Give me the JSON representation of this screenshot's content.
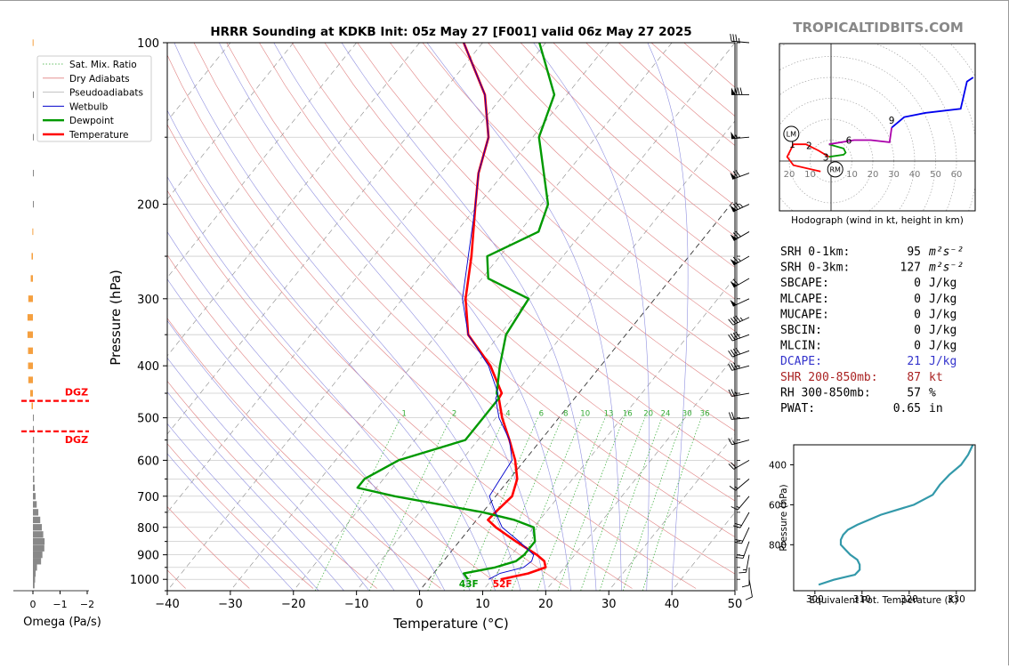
{
  "title": "HRRR Sounding at KDKB Init: 05z May 27 [F001] valid 06z May 27 2025",
  "brand": "TROPICALTIDBITS.COM",
  "colors": {
    "temperature": "#ff0000",
    "dewpoint": "#009900",
    "wetbulb": "#0000cc",
    "dry": "#e08080",
    "moist": "#9090e0",
    "mix": "#33aa33",
    "omega_pos": "#f5a040",
    "omega_neg": "#888888",
    "theta": "#3399aa",
    "dgz": "#ff0000"
  },
  "chart_data": [
    {
      "type": "skew-t",
      "title": "HRRR Sounding at KDKB Init: 05z May 27 [F001] valid 06z May 27 2025",
      "xlabel": "Temperature (°C)",
      "ylabel": "Pressure (hPa)",
      "xlim": [
        -40,
        50
      ],
      "ylim": [
        1050,
        100
      ],
      "x_ticks": [
        -40,
        -30,
        -20,
        -10,
        0,
        10,
        20,
        30,
        40,
        50
      ],
      "y_ticks": [
        100,
        200,
        300,
        400,
        500,
        600,
        700,
        800,
        900,
        1000
      ],
      "legend": [
        "Sat. Mix. Ratio",
        "Dry Adiabats",
        "Pseudoadiabats",
        "Wetbulb",
        "Dewpoint",
        "Temperature"
      ],
      "legend_position": "top-left",
      "mixing_ratio_labels": [
        "1",
        "2",
        "4",
        "6",
        "8",
        "10",
        "13",
        "16",
        "20",
        "24",
        "30",
        "36"
      ],
      "surface_labels": {
        "dewpoint": "43F",
        "temperature": "52F"
      },
      "series": [
        {
          "name": "Temperature",
          "p": [
            1000,
            975,
            950,
            925,
            900,
            850,
            800,
            775,
            750,
            700,
            650,
            600,
            550,
            500,
            460,
            450,
            400,
            350,
            300,
            250,
            200,
            175,
            150,
            125,
            100
          ],
          "t": [
            11.4,
            15,
            17,
            16,
            14,
            9,
            4,
            1.8,
            2,
            2.6,
            1.2,
            -1.5,
            -5,
            -9,
            -12,
            -12.2,
            -17.5,
            -25,
            -30,
            -34.5,
            -40.5,
            -44,
            -47,
            -53,
            -63
          ]
        },
        {
          "name": "Dewpoint",
          "p": [
            1000,
            975,
            950,
            925,
            900,
            850,
            800,
            775,
            750,
            700,
            675,
            650,
            600,
            550,
            500,
            460,
            450,
            400,
            350,
            300,
            275,
            250,
            225,
            200,
            150,
            125,
            100
          ],
          "t": [
            6.2,
            4.8,
            9,
            11.5,
            12,
            12,
            10,
            6,
            0,
            -16,
            -23,
            -23,
            -20,
            -12,
            -12,
            -12,
            -13,
            -16,
            -19,
            -20,
            -29,
            -32,
            -27,
            -29,
            -39,
            -42,
            -51
          ]
        },
        {
          "name": "Wetbulb",
          "p": [
            1000,
            975,
            950,
            925,
            900,
            850,
            800,
            750,
            700,
            650,
            600,
            550,
            500,
            460,
            450,
            400,
            350,
            300,
            250,
            200,
            175,
            150,
            125,
            100
          ],
          "t": [
            9.5,
            10.5,
            13.5,
            14,
            13.5,
            9.5,
            5,
            2,
            -1,
            -1.5,
            -2,
            -5,
            -9.5,
            -12.5,
            -12.8,
            -17.8,
            -25,
            -30.5,
            -35,
            -40.5,
            -44,
            -47,
            -53,
            -63
          ]
        }
      ]
    },
    {
      "type": "bar",
      "xlabel": "Omega (Pa/s)",
      "x_ticks": [
        0,
        -1,
        -2
      ],
      "xlim": [
        0.1,
        -2
      ],
      "annotation": "DGZ",
      "dgz_pressure": [
        530,
        465
      ],
      "bars": [
        {
          "p": 1025,
          "v": -0.06
        },
        {
          "p": 1000,
          "v": -0.08
        },
        {
          "p": 975,
          "v": -0.1
        },
        {
          "p": 950,
          "v": -0.15
        },
        {
          "p": 925,
          "v": -0.3
        },
        {
          "p": 900,
          "v": -0.35
        },
        {
          "p": 875,
          "v": -0.42
        },
        {
          "p": 850,
          "v": -0.43
        },
        {
          "p": 825,
          "v": -0.38
        },
        {
          "p": 800,
          "v": -0.33
        },
        {
          "p": 775,
          "v": -0.27
        },
        {
          "p": 750,
          "v": -0.2
        },
        {
          "p": 725,
          "v": -0.14
        },
        {
          "p": 700,
          "v": -0.1
        },
        {
          "p": 675,
          "v": -0.07
        },
        {
          "p": 650,
          "v": -0.05
        },
        {
          "p": 625,
          "v": -0.04
        },
        {
          "p": 600,
          "v": -0.04
        },
        {
          "p": 575,
          "v": -0.04
        },
        {
          "p": 550,
          "v": -0.04
        },
        {
          "p": 525,
          "v": -0.03
        },
        {
          "p": 500,
          "v": -0.02
        },
        {
          "p": 475,
          "v": 0.05
        },
        {
          "p": 450,
          "v": 0.1
        },
        {
          "p": 425,
          "v": 0.17
        },
        {
          "p": 400,
          "v": 0.18
        },
        {
          "p": 375,
          "v": 0.18
        },
        {
          "p": 350,
          "v": 0.2
        },
        {
          "p": 325,
          "v": 0.2
        },
        {
          "p": 300,
          "v": 0.17
        },
        {
          "p": 275,
          "v": 0.08
        },
        {
          "p": 250,
          "v": 0.05
        },
        {
          "p": 225,
          "v": 0.02
        },
        {
          "p": 200,
          "v": -0.01
        },
        {
          "p": 175,
          "v": -0.02
        },
        {
          "p": 150,
          "v": -0.03
        },
        {
          "p": 125,
          "v": -0.02
        },
        {
          "p": 100,
          "v": 0.01
        }
      ]
    },
    {
      "type": "line",
      "title": "Hodograph (wind in kt, height in km)",
      "x_tick_labels": [
        "20",
        "10",
        "10",
        "20",
        "30",
        "40",
        "50",
        "60"
      ],
      "height_labels": [
        "1",
        "2",
        "3",
        "6",
        "9"
      ],
      "motion_labels": [
        "LM",
        "RM"
      ],
      "segments": [
        {
          "name": "0-3km",
          "color": "#ff0000",
          "u": [
            -5,
            -18,
            -21,
            -18,
            -12,
            -6,
            -1
          ],
          "v": [
            -5,
            -2,
            2,
            8,
            8,
            5,
            2
          ]
        },
        {
          "name": "3-6km",
          "color": "#009900",
          "u": [
            -1,
            6,
            7,
            6,
            -1
          ],
          "v": [
            2,
            3,
            4,
            6,
            8
          ]
        },
        {
          "name": "6-9km",
          "color": "#aa00aa",
          "u": [
            -1,
            11,
            19,
            28,
            29
          ],
          "v": [
            8,
            10,
            10,
            9,
            16
          ]
        },
        {
          "name": "9-12km",
          "color": "#0000ee",
          "u": [
            29,
            35,
            45,
            62,
            65,
            68
          ],
          "v": [
            16,
            21,
            23,
            25,
            38,
            40
          ]
        }
      ],
      "lm": [
        -19,
        13
      ],
      "rm": [
        2,
        -4
      ]
    },
    {
      "type": "line",
      "xlabel": "Equivalent Pot. Temperature (K)",
      "ylabel": "Pressure (hPa)",
      "x_ticks": [
        300,
        310,
        320,
        330
      ],
      "y_ticks": [
        400,
        600,
        800
      ],
      "xlim": [
        295.5,
        334
      ],
      "ylim": [
        1030,
        300
      ],
      "series": [
        {
          "p": [
            1000,
            975,
            950,
            925,
            900,
            875,
            850,
            825,
            800,
            775,
            750,
            725,
            700,
            650,
            600,
            550,
            500,
            450,
            400,
            350,
            300
          ],
          "theta_e": [
            300.8,
            304,
            308.5,
            309.5,
            309.5,
            309,
            307.5,
            306.5,
            305.5,
            305.5,
            306,
            307,
            309,
            314,
            321,
            325,
            326.5,
            328.5,
            331,
            332.5,
            333.5
          ]
        }
      ]
    }
  ],
  "stats": [
    {
      "name": "SRH 0-1km:",
      "value": "95",
      "unit": "m²s⁻²",
      "color": "#000000"
    },
    {
      "name": "SRH 0-3km:",
      "value": "127",
      "unit": "m²s⁻²",
      "color": "#000000"
    },
    {
      "name": "SBCAPE:",
      "value": "0",
      "unit": "J/kg",
      "color": "#000000"
    },
    {
      "name": "MLCAPE:",
      "value": "0",
      "unit": "J/kg",
      "color": "#000000"
    },
    {
      "name": "MUCAPE:",
      "value": "0",
      "unit": "J/kg",
      "color": "#000000"
    },
    {
      "name": "SBCIN:",
      "value": "0",
      "unit": "J/kg",
      "color": "#000000"
    },
    {
      "name": "MLCIN:",
      "value": "0",
      "unit": "J/kg",
      "color": "#000000"
    },
    {
      "name": "DCAPE:",
      "value": "21",
      "unit": "J/kg",
      "color": "#3333cc"
    },
    {
      "name": "SHR 200-850mb:",
      "value": "87",
      "unit": "kt",
      "color": "#aa2222"
    },
    {
      "name": "RH 300-850mb:",
      "value": "57",
      "unit": "%",
      "color": "#000000"
    },
    {
      "name": "PWAT:",
      "value": "0.65",
      "unit": "in",
      "color": "#000000"
    }
  ],
  "wind_barbs": [
    {
      "p": 100,
      "dir": 275,
      "spd": 35
    },
    {
      "p": 125,
      "dir": 270,
      "spd": 80
    },
    {
      "p": 150,
      "dir": 265,
      "spd": 55
    },
    {
      "p": 175,
      "dir": 250,
      "spd": 70
    },
    {
      "p": 200,
      "dir": 245,
      "spd": 75
    },
    {
      "p": 225,
      "dir": 240,
      "spd": 70
    },
    {
      "p": 250,
      "dir": 240,
      "spd": 65
    },
    {
      "p": 275,
      "dir": 240,
      "spd": 60
    },
    {
      "p": 300,
      "dir": 245,
      "spd": 50
    },
    {
      "p": 325,
      "dir": 245,
      "spd": 45
    },
    {
      "p": 350,
      "dir": 250,
      "spd": 40
    },
    {
      "p": 375,
      "dir": 250,
      "spd": 40
    },
    {
      "p": 400,
      "dir": 255,
      "spd": 35
    },
    {
      "p": 450,
      "dir": 260,
      "spd": 25
    },
    {
      "p": 500,
      "dir": 265,
      "spd": 20
    },
    {
      "p": 550,
      "dir": 255,
      "spd": 15
    },
    {
      "p": 600,
      "dir": 240,
      "spd": 20
    },
    {
      "p": 650,
      "dir": 230,
      "spd": 15
    },
    {
      "p": 700,
      "dir": 220,
      "spd": 15
    },
    {
      "p": 750,
      "dir": 210,
      "spd": 20
    },
    {
      "p": 800,
      "dir": 205,
      "spd": 20
    },
    {
      "p": 850,
      "dir": 200,
      "spd": 20
    },
    {
      "p": 900,
      "dir": 190,
      "spd": 15
    },
    {
      "p": 950,
      "dir": 180,
      "spd": 10
    },
    {
      "p": 1000,
      "dir": 170,
      "spd": 10
    }
  ]
}
